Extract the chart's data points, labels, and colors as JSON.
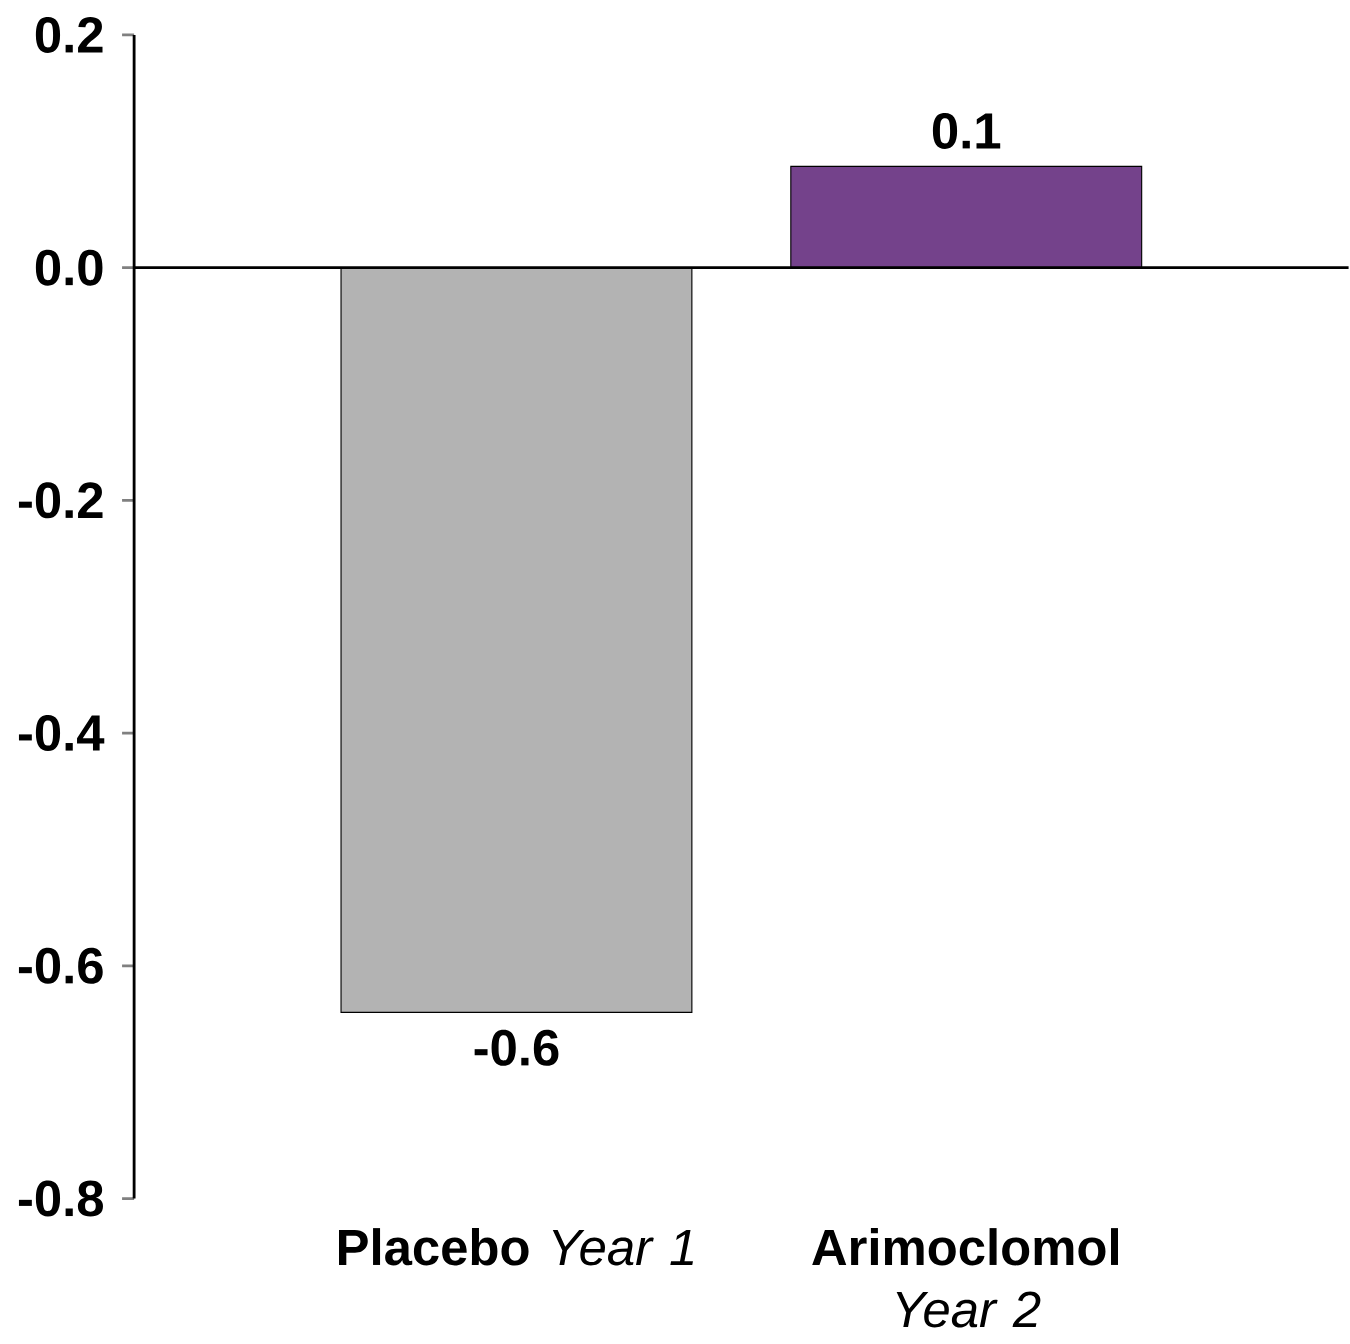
{
  "chart_data": {
    "type": "bar",
    "categories": [
      "**Placebo** *Year 1*",
      "**Arimoclomol** *Year 2*"
    ],
    "values": [
      -0.64,
      0.087
    ],
    "colors": [
      "#b3b3b3",
      "#74428b"
    ],
    "value_labels": [
      "-0.6",
      "0.1"
    ],
    "ylim": [
      -0.8,
      0.2
    ],
    "yticks": [
      -0.8,
      -0.6,
      -0.4,
      -0.2,
      {
        "value": 0,
        "label": "0.0"
      },
      0.2
    ]
  }
}
